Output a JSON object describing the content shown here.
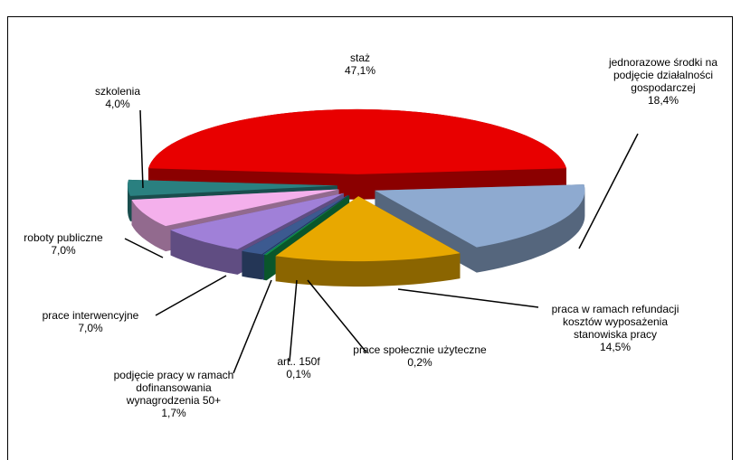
{
  "chart_data": {
    "type": "pie3d",
    "categories": [
      "staż",
      "jednorazowe środki na podjęcie działalności gospodarczej",
      "praca w ramach refundacji kosztów wyposażenia stanowiska pracy",
      "prace społecznie użyteczne",
      "art.. 150f",
      "podjęcie pracy w ramach dofinansowania wynagrodzenia 50+",
      "prace interwencyjne",
      "roboty publiczne",
      "szkolenia"
    ],
    "values": [
      47.1,
      18.4,
      14.5,
      0.2,
      0.1,
      1.7,
      7.0,
      7.0,
      4.0
    ],
    "value_labels": [
      "47,1%",
      "18,4%",
      "14,5%",
      "0,2%",
      "0,1%",
      "1,7%",
      "7,0%",
      "7,0%",
      "4,0%"
    ],
    "colors": [
      "#e80000",
      "#8eaad0",
      "#e8a800",
      "#109048",
      "#3060a0",
      "#3c5a90",
      "#a080d8",
      "#f4b0ec",
      "#2a8080"
    ]
  }
}
